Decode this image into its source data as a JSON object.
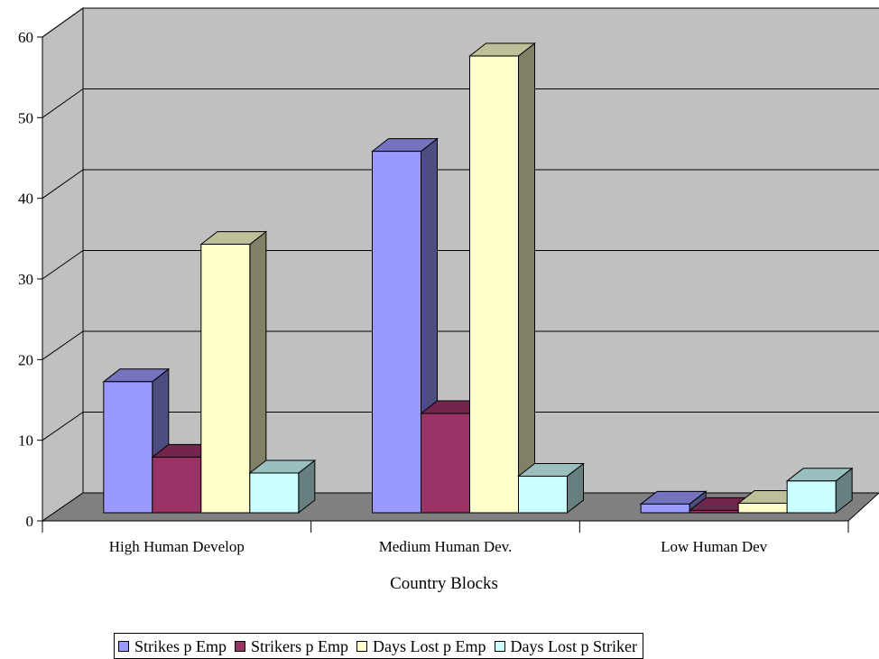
{
  "chart_data": {
    "type": "bar",
    "style": "3d-clustered",
    "categories": [
      "High Human Develop",
      "Medium Human Dev.",
      "Low Human Dev"
    ],
    "series": [
      {
        "name": "Strikes p Emp",
        "values": [
          16.5,
          45.5,
          1.1
        ],
        "color": "#9999ff"
      },
      {
        "name": "Strikers p Emp",
        "values": [
          7,
          12.5,
          0.3
        ],
        "color": "#993366"
      },
      {
        "name": "Days Lost p Emp",
        "values": [
          33.8,
          57.5,
          1.2
        ],
        "color": "#ffffcc"
      },
      {
        "name": "Days Lost p Striker",
        "values": [
          5,
          4.6,
          4
        ],
        "color": "#ccffff"
      }
    ],
    "xlabel": "Country Blocks",
    "ylabel": "",
    "ylim": [
      0,
      60
    ],
    "yticks": [
      "0",
      "10",
      "20",
      "30",
      "40",
      "50",
      "60"
    ],
    "grid": true,
    "legend_position": "bottom",
    "colors": {
      "walls": "#c0c0c0",
      "floor": "#808080",
      "gridlines": "#000000"
    }
  }
}
